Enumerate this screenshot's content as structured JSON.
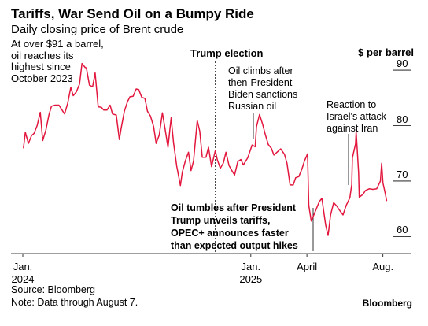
{
  "chart_data": {
    "type": "line",
    "title": "Tariffs, War Send Oil on a Bumpy Ride",
    "subtitle": "Daily closing price of Brent crude",
    "ylabel": "$ per barrel",
    "ylim": [
      57.5,
      92
    ],
    "yticks": [
      60,
      70,
      80,
      90
    ],
    "xlim": [
      "2024-01-01",
      "2025-08-14"
    ],
    "xticks": [
      {
        "date": "2024-01-01",
        "lines": [
          "Jan.",
          "2024"
        ]
      },
      {
        "date": "2025-01-01",
        "lines": [
          "Jan.",
          "2025"
        ]
      },
      {
        "date": "2025-04-01",
        "lines": [
          "April"
        ]
      },
      {
        "date": "2025-08-01",
        "lines": [
          "Aug."
        ]
      }
    ],
    "series": [
      {
        "color": "#e3173e",
        "points": [
          [
            "2024-01-02",
            75.9
          ],
          [
            "2024-01-05",
            78.8
          ],
          [
            "2024-01-10",
            76.8
          ],
          [
            "2024-01-15",
            78.2
          ],
          [
            "2024-01-19",
            78.6
          ],
          [
            "2024-01-24",
            80.0
          ],
          [
            "2024-01-29",
            82.4
          ],
          [
            "2024-02-02",
            77.3
          ],
          [
            "2024-02-07",
            79.2
          ],
          [
            "2024-02-12",
            82.0
          ],
          [
            "2024-02-16",
            83.5
          ],
          [
            "2024-02-22",
            83.7
          ],
          [
            "2024-02-28",
            83.7
          ],
          [
            "2024-03-04",
            82.8
          ],
          [
            "2024-03-08",
            82.1
          ],
          [
            "2024-03-13",
            84.0
          ],
          [
            "2024-03-18",
            86.9
          ],
          [
            "2024-03-22",
            85.4
          ],
          [
            "2024-03-27",
            86.1
          ],
          [
            "2024-04-01",
            87.5
          ],
          [
            "2024-04-05",
            91.2
          ],
          [
            "2024-04-10",
            90.5
          ],
          [
            "2024-04-12",
            90.4
          ],
          [
            "2024-04-17",
            87.3
          ],
          [
            "2024-04-22",
            87.0
          ],
          [
            "2024-04-26",
            89.5
          ],
          [
            "2024-05-01",
            83.4
          ],
          [
            "2024-05-06",
            83.3
          ],
          [
            "2024-05-10",
            82.8
          ],
          [
            "2024-05-15",
            82.8
          ],
          [
            "2024-05-20",
            83.7
          ],
          [
            "2024-05-24",
            82.1
          ],
          [
            "2024-05-30",
            81.9
          ],
          [
            "2024-06-04",
            77.5
          ],
          [
            "2024-06-07",
            79.6
          ],
          [
            "2024-06-12",
            82.6
          ],
          [
            "2024-06-17",
            84.3
          ],
          [
            "2024-06-21",
            85.2
          ],
          [
            "2024-06-26",
            85.3
          ],
          [
            "2024-07-01",
            86.6
          ],
          [
            "2024-07-05",
            86.5
          ],
          [
            "2024-07-10",
            85.1
          ],
          [
            "2024-07-15",
            84.9
          ],
          [
            "2024-07-19",
            82.6
          ],
          [
            "2024-07-24",
            81.7
          ],
          [
            "2024-07-29",
            79.8
          ],
          [
            "2024-08-02",
            76.8
          ],
          [
            "2024-08-07",
            78.3
          ],
          [
            "2024-08-12",
            82.3
          ],
          [
            "2024-08-16",
            79.7
          ],
          [
            "2024-08-21",
            76.1
          ],
          [
            "2024-08-26",
            81.4
          ],
          [
            "2024-08-30",
            76.9
          ],
          [
            "2024-09-04",
            72.7
          ],
          [
            "2024-09-10",
            69.2
          ],
          [
            "2024-09-13",
            71.6
          ],
          [
            "2024-09-18",
            73.7
          ],
          [
            "2024-09-23",
            75.2
          ],
          [
            "2024-09-27",
            71.9
          ],
          [
            "2024-10-01",
            73.6
          ],
          [
            "2024-10-07",
            80.9
          ],
          [
            "2024-10-11",
            79.0
          ],
          [
            "2024-10-15",
            74.3
          ],
          [
            "2024-10-21",
            74.3
          ],
          [
            "2024-10-25",
            76.1
          ],
          [
            "2024-10-30",
            72.6
          ],
          [
            "2024-11-05",
            75.5
          ],
          [
            "2024-11-08",
            73.9
          ],
          [
            "2024-11-13",
            72.3
          ],
          [
            "2024-11-18",
            73.3
          ],
          [
            "2024-11-22",
            75.2
          ],
          [
            "2024-11-27",
            72.8
          ],
          [
            "2024-12-02",
            71.8
          ],
          [
            "2024-12-06",
            71.1
          ],
          [
            "2024-12-11",
            73.5
          ],
          [
            "2024-12-16",
            73.9
          ],
          [
            "2024-12-20",
            72.9
          ],
          [
            "2024-12-27",
            74.2
          ],
          [
            "2025-01-03",
            76.5
          ],
          [
            "2025-01-08",
            76.2
          ],
          [
            "2025-01-10",
            79.8
          ],
          [
            "2025-01-15",
            82.0
          ],
          [
            "2025-01-20",
            80.2
          ],
          [
            "2025-01-24",
            78.5
          ],
          [
            "2025-01-29",
            76.6
          ],
          [
            "2025-02-03",
            75.9
          ],
          [
            "2025-02-07",
            74.7
          ],
          [
            "2025-02-12",
            75.2
          ],
          [
            "2025-02-18",
            75.8
          ],
          [
            "2025-02-24",
            74.8
          ],
          [
            "2025-02-28",
            73.2
          ],
          [
            "2025-03-05",
            69.3
          ],
          [
            "2025-03-10",
            69.3
          ],
          [
            "2025-03-14",
            70.6
          ],
          [
            "2025-03-19",
            70.8
          ],
          [
            "2025-03-24",
            72.2
          ],
          [
            "2025-03-28",
            73.6
          ],
          [
            "2025-04-02",
            74.9
          ],
          [
            "2025-04-04",
            65.6
          ],
          [
            "2025-04-08",
            62.8
          ],
          [
            "2025-04-10",
            63.3
          ],
          [
            "2025-04-15",
            64.7
          ],
          [
            "2025-04-21",
            66.3
          ],
          [
            "2025-04-25",
            66.9
          ],
          [
            "2025-05-01",
            62.1
          ],
          [
            "2025-05-05",
            60.2
          ],
          [
            "2025-05-09",
            63.9
          ],
          [
            "2025-05-14",
            66.1
          ],
          [
            "2025-05-19",
            65.5
          ],
          [
            "2025-05-23",
            64.8
          ],
          [
            "2025-05-29",
            63.9
          ],
          [
            "2025-06-03",
            65.6
          ],
          [
            "2025-06-09",
            67.0
          ],
          [
            "2025-06-12",
            69.4
          ],
          [
            "2025-06-13",
            74.2
          ],
          [
            "2025-06-18",
            76.7
          ],
          [
            "2025-06-19",
            78.9
          ],
          [
            "2025-06-23",
            71.5
          ],
          [
            "2025-06-24",
            67.1
          ],
          [
            "2025-06-30",
            67.6
          ],
          [
            "2025-07-04",
            68.3
          ],
          [
            "2025-07-10",
            68.6
          ],
          [
            "2025-07-16",
            68.5
          ],
          [
            "2025-07-22",
            68.6
          ],
          [
            "2025-07-28",
            70.0
          ],
          [
            "2025-07-30",
            73.2
          ],
          [
            "2025-08-01",
            69.7
          ],
          [
            "2025-08-05",
            67.6
          ],
          [
            "2025-08-07",
            66.4
          ]
        ]
      }
    ],
    "event_lines": [
      {
        "date": "2024-11-05",
        "label": "Trump election"
      }
    ],
    "annotations": [
      {
        "id": "high",
        "lines": [
          "At over $91 a barrel,",
          "oil reaches its",
          "highest since",
          "October 2023"
        ]
      },
      {
        "id": "sanctions",
        "lines": [
          "Oil climbs after",
          "then-President",
          "Biden sanctions",
          "Russian oil"
        ]
      },
      {
        "id": "iran",
        "lines": [
          "Reaction to",
          "Israel's attack",
          "against Iran"
        ]
      },
      {
        "id": "tariffs",
        "lines": [
          "Oil tumbles after President",
          "Trump unveils tariffs,",
          "OPEC+ announces faster",
          "than expected output hikes"
        ]
      }
    ],
    "source": "Source: Bloomberg",
    "note": "Note: Data through August 7.",
    "brand": "Bloomberg"
  }
}
